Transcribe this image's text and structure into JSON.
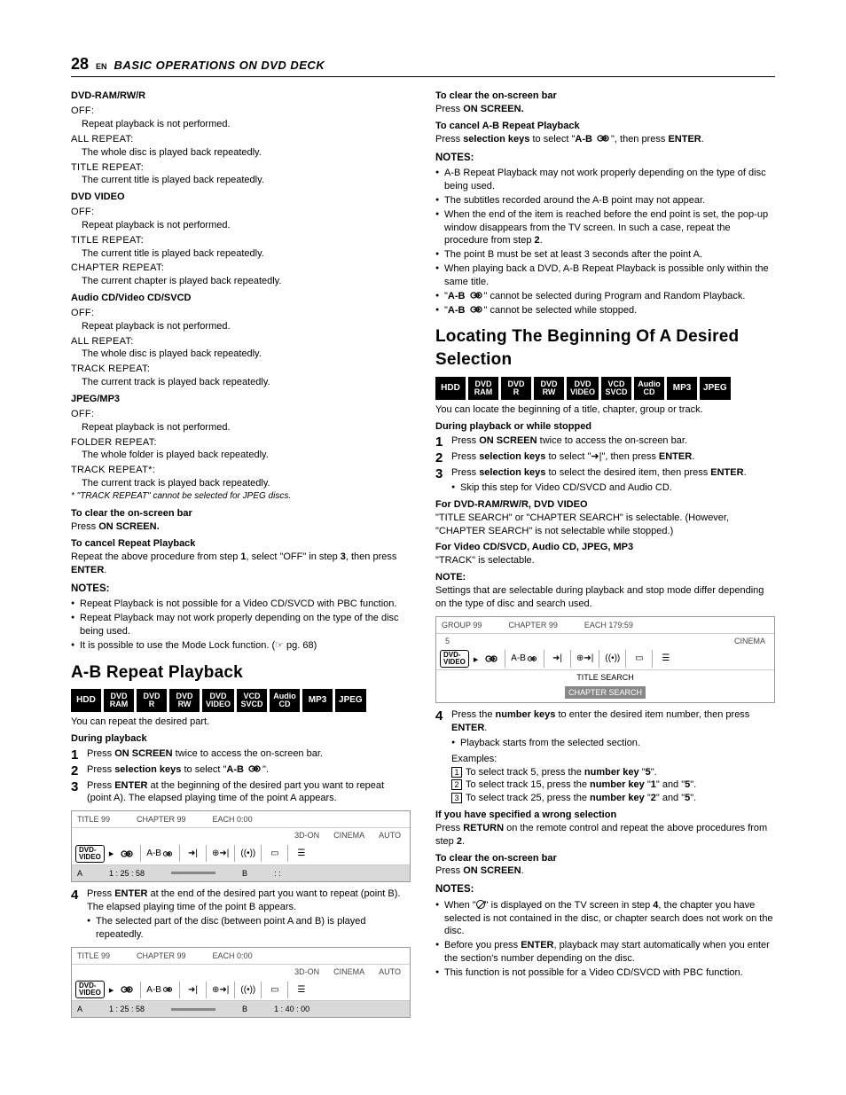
{
  "page": {
    "number": "28",
    "lang": "EN",
    "title": "BASIC OPERATIONS ON DVD DECK"
  },
  "left": {
    "sec1": {
      "h": "DVD-RAM/RW/R",
      "opts": [
        {
          "l": "OFF:",
          "d": "Repeat playback is not performed."
        },
        {
          "l": "ALL REPEAT:",
          "d": "The whole disc is played back repeatedly."
        },
        {
          "l": "TITLE REPEAT:",
          "d": "The current title is played back repeatedly."
        }
      ]
    },
    "sec2": {
      "h": "DVD VIDEO",
      "opts": [
        {
          "l": "OFF:",
          "d": "Repeat playback is not performed."
        },
        {
          "l": "TITLE REPEAT:",
          "d": "The current title is played back repeatedly."
        },
        {
          "l": "CHAPTER REPEAT:",
          "d": "The current chapter is played back repeatedly."
        }
      ]
    },
    "sec3": {
      "h": "Audio CD/Video CD/SVCD",
      "opts": [
        {
          "l": "OFF:",
          "d": "Repeat playback is not performed."
        },
        {
          "l": "ALL REPEAT:",
          "d": "The whole disc is played back repeatedly."
        },
        {
          "l": "TRACK REPEAT:",
          "d": "The current track is played back repeatedly."
        }
      ]
    },
    "sec4": {
      "h": "JPEG/MP3",
      "opts": [
        {
          "l": "OFF:",
          "d": "Repeat playback is not performed."
        },
        {
          "l": "FOLDER REPEAT:",
          "d": "The whole folder is played back repeatedly."
        },
        {
          "l": "TRACK REPEAT*:",
          "d": "The current track is played back repeatedly."
        }
      ],
      "foot": "* \"TRACK REPEAT\" cannot be selected for JPEG discs."
    },
    "clear": {
      "h": "To clear the on-screen bar",
      "t1": "Press ",
      "t2": "ON SCREEN."
    },
    "cancel": {
      "h": "To cancel Repeat Playback",
      "t": "Repeat the above procedure from step 1, select \"OFF\" in step 3, then press ENTER."
    },
    "notesH": "NOTES:",
    "notes": [
      "Repeat Playback is not possible for a Video CD/SVCD with PBC function.",
      "Repeat Playback may not work properly depending on the type of the disc being used.",
      "It is possible to use the Mode Lock function. (☞ pg. 68)"
    ],
    "ab": {
      "title": "A-B Repeat Playback",
      "badges": [
        "HDD",
        "DVD|RAM",
        "DVD|R",
        "DVD|RW",
        "DVD|VIDEO",
        "VCD|SVCD",
        "Audio|CD",
        "MP3",
        "JPEG"
      ],
      "intro": "You can repeat the desired part.",
      "during": "During playback",
      "s1a": "Press ",
      "s1b": "ON SCREEN",
      "s1c": " twice to access the on-screen bar.",
      "s2a": "Press ",
      "s2b": "selection keys",
      "s2c": " to select \"",
      "s2d": "A-B ",
      "s2e": "\".",
      "s3a": "Press ",
      "s3b": "ENTER",
      "s3c": " at the beginning of the desired part you want to repeat (point A). The elapsed playing time of the point A appears.",
      "osd1": {
        "head": [
          "TITLE 99",
          "CHAPTER 99",
          "EACH 0:00"
        ],
        "labels": [
          "3D-ON",
          "CINEMA",
          "AUTO"
        ],
        "ab": {
          "a": "A",
          "at": "1 : 25 : 58",
          "b": "B",
          "bt": ":   :"
        }
      },
      "s4a": "Press ",
      "s4b": "ENTER",
      "s4c": " at the end of the desired part you want to repeat (point B). The elapsed playing time of the point B appears.",
      "s4bul": "The selected part of the disc (between point A and B) is played repeatedly.",
      "osd2": {
        "head": [
          "TITLE 99",
          "CHAPTER 99",
          "EACH 0:00"
        ],
        "labels": [
          "3D-ON",
          "CINEMA",
          "AUTO"
        ],
        "ab": {
          "a": "A",
          "at": "1 : 25 : 58",
          "b": "B",
          "bt": "1 : 40 : 00"
        }
      }
    }
  },
  "right": {
    "clear": {
      "h": "To clear the on-screen bar",
      "t1": "Press ",
      "t2": "ON SCREEN."
    },
    "cancelAB": {
      "h": "To cancel A-B Repeat Playback",
      "t1": "Press ",
      "t2": "selection keys",
      "t3": " to select \"",
      "t4": "A-B ",
      "t5": "\", then press ",
      "t6": "ENTER",
      "t7": "."
    },
    "notesH": "NOTES:",
    "notes": [
      "A-B Repeat Playback may not work properly depending on the type of disc being used.",
      "The subtitles recorded around the A-B point may not appear.",
      "When the end of the item is reached before the end point is set, the pop-up window disappears from the TV screen. In such a case, repeat the procedure from step 2.",
      "The point B must be set at least 3 seconds after the point A.",
      "When playing back a DVD, A-B Repeat Playback is possible only within the same title."
    ],
    "noteAB1a": "\"",
    "noteAB1b": "A-B ",
    "noteAB1c": "\" cannot be selected during Program and Random Playback.",
    "noteAB2a": "\"",
    "noteAB2b": "A-B ",
    "noteAB2c": "\" cannot be selected while stopped.",
    "locate": {
      "title": "Locating The Beginning Of A Desired Selection",
      "badges": [
        "HDD",
        "DVD|RAM",
        "DVD|R",
        "DVD|RW",
        "DVD|VIDEO",
        "VCD|SVCD",
        "Audio|CD",
        "MP3",
        "JPEG"
      ],
      "intro": "You can locate the beginning of a title, chapter, group or track.",
      "during": "During playback or while stopped",
      "s1a": "Press ",
      "s1b": "ON SCREEN",
      "s1c": " twice to access the on-screen bar.",
      "s2a": "Press ",
      "s2b": "selection keys",
      "s2c": " to select \"",
      "s2d": "\", then press ",
      "s2e": "ENTER",
      "s2f": ".",
      "s3a": "Press ",
      "s3b": "selection keys",
      "s3c": " to select the desired item, then press ",
      "s3d": "ENTER",
      "s3e": ".",
      "s3bul": "Skip this step for Video CD/SVCD and Audio CD.",
      "forDVD": {
        "h": "For DVD-RAM/RW/R, DVD VIDEO",
        "t": "\"TITLE SEARCH\" or \"CHAPTER SEARCH\" is selectable. (However, \"CHAPTER SEARCH\" is not selectable while stopped.)"
      },
      "forVCD": {
        "h": "For Video CD/SVCD, Audio CD, JPEG, MP3",
        "t": "\"TRACK\" is selectable."
      },
      "noteH": "NOTE:",
      "noteT": "Settings that are selectable during playback and stop mode differ depending on the type of disc and search used.",
      "osd": {
        "head": [
          "GROUP 99",
          "CHAPTER 99",
          "EACH 179:59"
        ],
        "mid": {
          "num": "5",
          "label": "CINEMA"
        },
        "ts": "TITLE SEARCH",
        "cs": "CHAPTER SEARCH"
      },
      "s4a": "Press the ",
      "s4b": "number keys",
      "s4c": " to enter the desired item number, then press ",
      "s4d": "ENTER",
      "s4e": ".",
      "s4bul": "Playback starts from the selected section.",
      "exH": "Examples:",
      "ex": [
        {
          "n": "1",
          "a": "To select track 5, press the ",
          "b": "number key",
          "c": " \"",
          "d": "5",
          "e": "\"."
        },
        {
          "n": "2",
          "a": "To select track 15, press the ",
          "b": "number key",
          "c": " \"",
          "d": "1",
          "e": "\" and \"",
          "f": "5",
          "g": "\"."
        },
        {
          "n": "3",
          "a": "To select track 25, press the ",
          "b": "number key",
          "c": " \"",
          "d": "2",
          "e": "\" and \"",
          "f": "5",
          "g": "\"."
        }
      ],
      "wrong": {
        "h": "If you have specified a wrong selection",
        "t1": "Press ",
        "t2": "RETURN",
        "t3": " on the remote control and repeat the above procedures from step ",
        "t4": "2",
        "t5": "."
      },
      "clear2": {
        "h": "To clear the on-screen bar",
        "t1": "Press ",
        "t2": "ON SCREEN",
        "t3": "."
      },
      "notes2H": "NOTES:",
      "n2a1": "When \"",
      "n2a2": "\" is displayed on the TV screen in step ",
      "n2a3": "4",
      "n2a4": ", the chapter you have selected is not contained in the disc, or chapter search does not work on the disc.",
      "n2b1": "Before you press ",
      "n2b2": "ENTER",
      "n2b3": ", playback may start automatically when you enter the section's number depending on the disc.",
      "n2c": "This function is not possible for a Video CD/SVCD with PBC function."
    }
  }
}
